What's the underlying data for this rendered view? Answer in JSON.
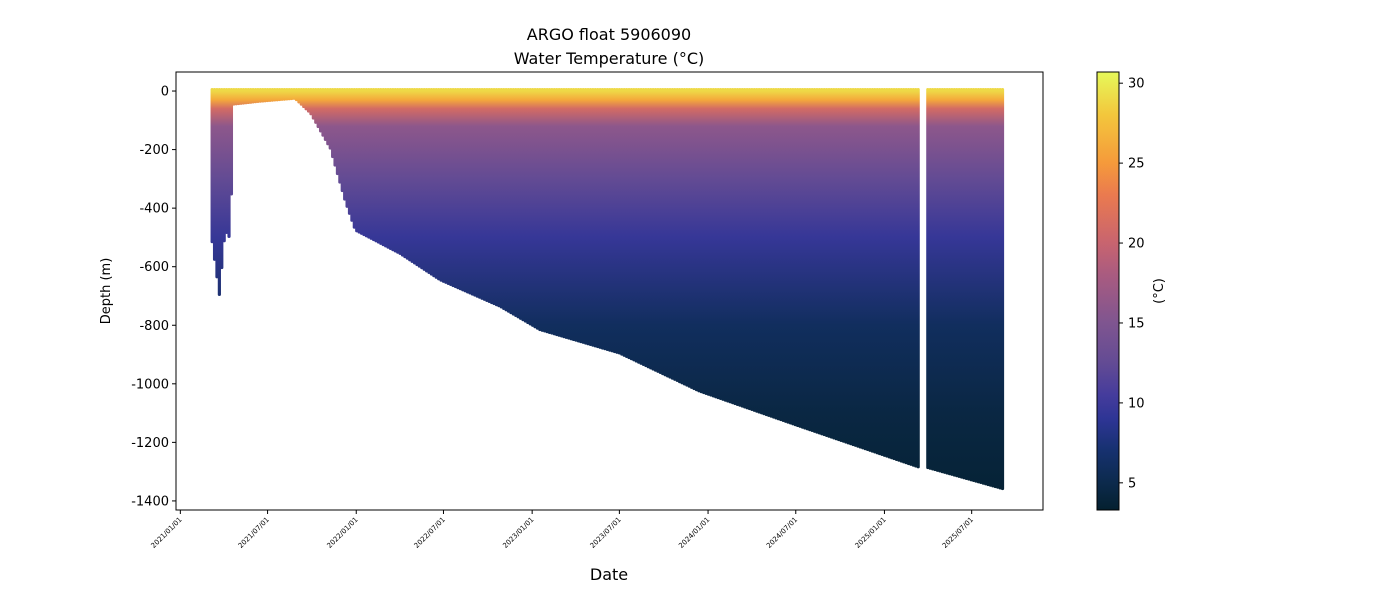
{
  "chart_data": {
    "type": "scatter",
    "title": "ARGO float 5906090",
    "subtitle": "Water Temperature (°C)",
    "xlabel": "Date",
    "ylabel": "Depth (m)",
    "ylim": [
      -1431,
      65
    ],
    "xlim": [
      "2020-12-23",
      "2025-11-26"
    ],
    "yticks": [
      0,
      -200,
      -400,
      -600,
      -800,
      -1000,
      -1200,
      -1400
    ],
    "xticks": [
      "2021/01/01",
      "2021/07/01",
      "2022/01/01",
      "2022/07/01",
      "2023/01/01",
      "2023/07/01",
      "2024/01/01",
      "2024/07/01",
      "2025/01/01",
      "2025/07/01"
    ],
    "profile_interval_days": 5,
    "profile_max_depth": [
      {
        "date": "2021-03-08",
        "depth": -520
      },
      {
        "date": "2021-03-23",
        "depth": -700
      },
      {
        "date": "2021-04-04",
        "depth": -480
      },
      {
        "date": "2021-04-15",
        "depth": -510
      },
      {
        "date": "2021-04-21",
        "depth": -50
      },
      {
        "date": "2021-06-16",
        "depth": -40
      },
      {
        "date": "2021-08-27",
        "depth": -30
      },
      {
        "date": "2021-09-28",
        "depth": -80
      },
      {
        "date": "2021-11-08",
        "depth": -200
      },
      {
        "date": "2021-12-09",
        "depth": -380
      },
      {
        "date": "2021-12-30",
        "depth": -480
      },
      {
        "date": "2022-04-02",
        "depth": -560
      },
      {
        "date": "2022-06-24",
        "depth": -650
      },
      {
        "date": "2022-10-26",
        "depth": -740
      },
      {
        "date": "2023-01-17",
        "depth": -820
      },
      {
        "date": "2023-07-01",
        "depth": -900
      },
      {
        "date": "2023-12-14",
        "depth": -1030
      },
      {
        "date": "2024-07-09",
        "depth": -1150
      },
      {
        "date": "2025-03-14",
        "depth": -1290
      },
      {
        "date": "2025-03-29",
        "depth": -1290
      },
      {
        "date": "2025-09-07",
        "depth": -1365
      }
    ],
    "data_gap": [
      "2025-03-15",
      "2025-03-28"
    ],
    "typical_temperature_profile": [
      {
        "depth": 0,
        "temp": 29
      },
      {
        "depth": -30,
        "temp": 26
      },
      {
        "depth": -60,
        "temp": 21
      },
      {
        "depth": -120,
        "temp": 16
      },
      {
        "depth": -300,
        "temp": 12.5
      },
      {
        "depth": -500,
        "temp": 9.5
      },
      {
        "depth": -800,
        "temp": 6
      },
      {
        "depth": -1100,
        "temp": 4.5
      },
      {
        "depth": -1400,
        "temp": 3.6
      }
    ],
    "colorbar": {
      "label": "(°C)",
      "range": [
        3.3,
        30.7
      ],
      "ticks": [
        5,
        10,
        15,
        20,
        25,
        30
      ],
      "colormap": "thermal"
    },
    "colormap_stops": [
      {
        "v": 3.3,
        "c": "#04202f"
      },
      {
        "v": 5,
        "c": "#0c2a4c"
      },
      {
        "v": 7,
        "c": "#16316f"
      },
      {
        "v": 9,
        "c": "#2e3595"
      },
      {
        "v": 10.5,
        "c": "#453c9c"
      },
      {
        "v": 12.5,
        "c": "#634b94"
      },
      {
        "v": 15,
        "c": "#7f5590"
      },
      {
        "v": 18,
        "c": "#a95b80"
      },
      {
        "v": 20,
        "c": "#c8646f"
      },
      {
        "v": 23,
        "c": "#ea7a4f"
      },
      {
        "v": 25,
        "c": "#f59a3b"
      },
      {
        "v": 28,
        "c": "#f3c63c"
      },
      {
        "v": 30.7,
        "c": "#e6f95a"
      }
    ]
  }
}
